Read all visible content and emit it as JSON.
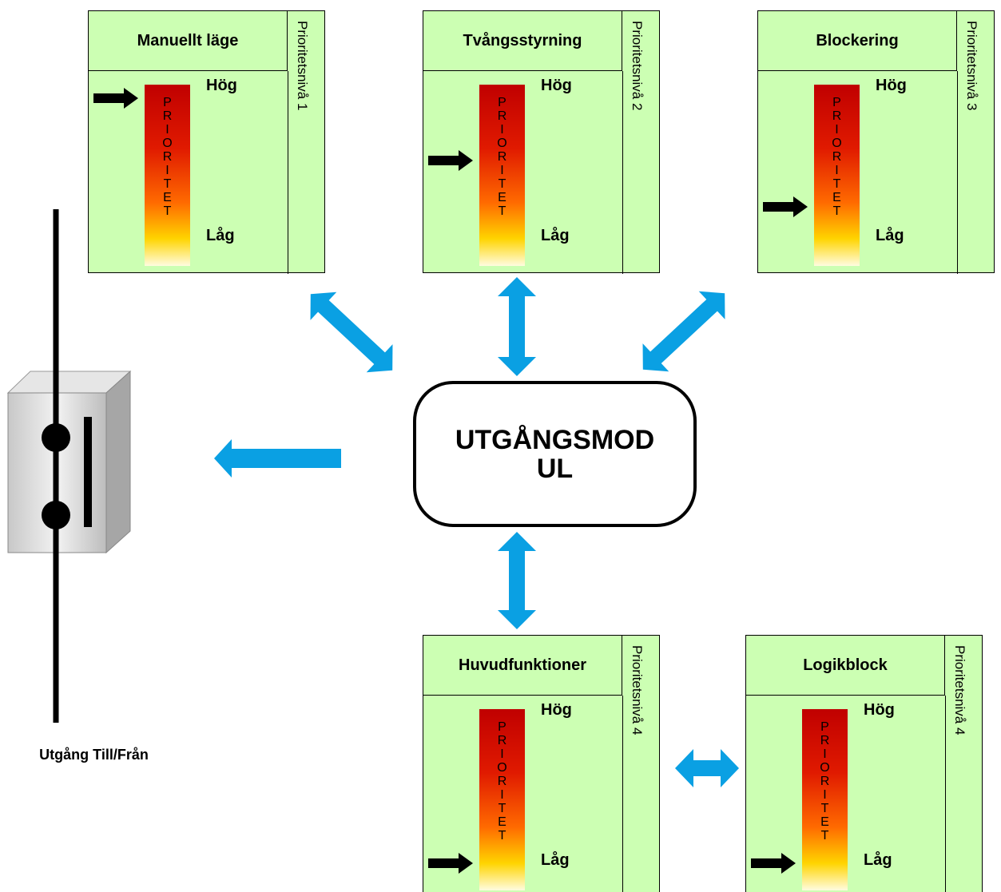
{
  "blocks": [
    {
      "title": "Manuellt läge",
      "high": "Hög",
      "low": "Låg",
      "bar": "PRIORITET",
      "level": "Prioritetsnivå 1"
    },
    {
      "title": "Tvångsstyrning",
      "high": "Hög",
      "low": "Låg",
      "bar": "PRIORITET",
      "level": "Prioritetsnivå 2"
    },
    {
      "title": "Blockering",
      "high": "Hög",
      "low": "Låg",
      "bar": "PRIORITET",
      "level": "Prioritetsnivå 3"
    },
    {
      "title": "Huvudfunktioner",
      "high": "Hög",
      "low": "Låg",
      "bar": "PRIORITET",
      "level": "Prioritetsnivå 4"
    },
    {
      "title": "Logikblock",
      "high": "Hög",
      "low": "Låg",
      "bar": "PRIORITET",
      "level": "Prioritetsnivå 4"
    }
  ],
  "center": {
    "label": "UTGÅNGSMODUL"
  },
  "output": {
    "label": "Utgång Till/Från"
  }
}
